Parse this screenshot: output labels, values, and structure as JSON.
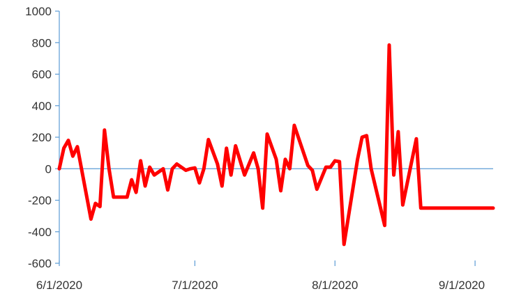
{
  "chart_data": {
    "type": "line",
    "title": "",
    "xlabel": "",
    "ylabel": "",
    "ylim": [
      -600,
      1000
    ],
    "xlim": [
      "2020-06-01",
      "2020-09-05"
    ],
    "yticks": [
      -600,
      -400,
      -200,
      0,
      200,
      400,
      600,
      800,
      1000
    ],
    "ytick_labels": [
      "-600",
      "-400",
      "-200",
      "0",
      "200",
      "400",
      "600",
      "800",
      "1000"
    ],
    "xtick_labels": [
      "6/1/2020",
      "7/1/2020",
      "8/1/2020",
      "9/1/2020"
    ],
    "xtick_dates": [
      "2020-06-01",
      "2020-07-01",
      "2020-08-01",
      "2020-09-01"
    ],
    "grid": false,
    "legend": "none",
    "colors": {
      "series": "#ff0000",
      "axis": "#5b9bd5",
      "text": "#333333"
    },
    "series": [
      {
        "x": [
          "2020-06-01",
          "2020-06-02",
          "2020-06-03",
          "2020-06-04",
          "2020-06-05",
          "2020-06-08",
          "2020-06-09",
          "2020-06-10",
          "2020-06-11",
          "2020-06-12",
          "2020-06-13",
          "2020-06-16",
          "2020-06-17",
          "2020-06-18",
          "2020-06-19",
          "2020-06-20",
          "2020-06-21",
          "2020-06-22",
          "2020-06-24",
          "2020-06-25",
          "2020-06-26",
          "2020-06-27",
          "2020-06-29",
          "2020-06-30",
          "2020-07-01",
          "2020-07-02",
          "2020-07-03",
          "2020-07-04",
          "2020-07-06",
          "2020-07-07",
          "2020-07-08",
          "2020-07-09",
          "2020-07-10",
          "2020-07-12",
          "2020-07-13",
          "2020-07-14",
          "2020-07-15",
          "2020-07-16",
          "2020-07-17",
          "2020-07-19",
          "2020-07-20",
          "2020-07-21",
          "2020-07-22",
          "2020-07-23",
          "2020-07-26",
          "2020-07-27",
          "2020-07-28",
          "2020-07-30",
          "2020-07-31",
          "2020-08-01",
          "2020-08-02",
          "2020-08-03",
          "2020-08-06",
          "2020-08-07",
          "2020-08-08",
          "2020-08-09",
          "2020-08-12",
          "2020-08-13",
          "2020-08-14",
          "2020-08-15",
          "2020-08-16",
          "2020-08-19",
          "2020-08-20",
          "2020-08-21",
          "2020-08-22",
          "2020-08-23",
          "2020-08-26",
          "2020-08-27",
          "2020-08-28",
          "2020-08-29",
          "2020-08-30",
          "2020-08-31",
          "2020-09-01",
          "2020-09-02",
          "2020-09-03",
          "2020-09-04",
          "2020-09-05"
        ],
        "y": [
          0,
          130,
          180,
          80,
          140,
          -320,
          -220,
          -240,
          245,
          0,
          -180,
          -180,
          -70,
          -150,
          50,
          -110,
          10,
          -40,
          0,
          -135,
          0,
          30,
          -10,
          0,
          5,
          -90,
          0,
          185,
          30,
          -110,
          130,
          -40,
          145,
          -40,
          30,
          100,
          0,
          -250,
          220,
          60,
          -140,
          60,
          0,
          275,
          20,
          -10,
          -130,
          10,
          10,
          50,
          45,
          -480,
          60,
          200,
          210,
          0,
          -360,
          785,
          -40,
          235,
          -230,
          190,
          -250,
          -250,
          -250,
          -250,
          -250,
          -250,
          -250,
          -250,
          -250,
          -250,
          -250,
          -250,
          -250,
          -250,
          -250
        ]
      }
    ]
  }
}
